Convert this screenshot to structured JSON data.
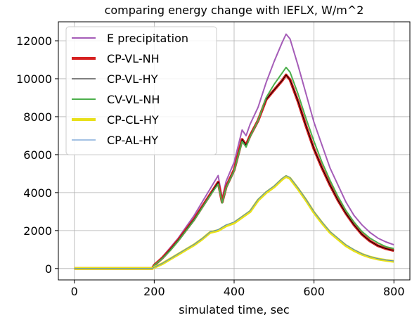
{
  "chart_data": {
    "type": "line",
    "title": "comparing energy change with IEFLX, W/m^2",
    "xlabel": "simulated time, sec",
    "ylabel": "",
    "xlim": [
      -40,
      840
    ],
    "ylim": [
      -600,
      13000
    ],
    "xticks": [
      0,
      200,
      400,
      600,
      800
    ],
    "yticks": [
      0,
      2000,
      4000,
      6000,
      8000,
      10000,
      12000
    ],
    "grid": true,
    "legend_position": "top-left",
    "series": [
      {
        "name": "E precipitation",
        "color": "#a55db8",
        "width": 2,
        "x": [
          0,
          195,
          200,
          220,
          240,
          260,
          280,
          300,
          320,
          340,
          360,
          370,
          380,
          400,
          420,
          430,
          440,
          460,
          480,
          500,
          520,
          530,
          540,
          560,
          580,
          600,
          620,
          640,
          660,
          680,
          700,
          720,
          740,
          760,
          780,
          800
        ],
        "y": [
          0,
          0,
          200,
          600,
          1100,
          1600,
          2200,
          2800,
          3500,
          4200,
          4900,
          3700,
          4600,
          5600,
          7300,
          7000,
          7600,
          8500,
          9800,
          10900,
          11900,
          12350,
          12100,
          10700,
          9200,
          7700,
          6500,
          5300,
          4400,
          3500,
          2800,
          2300,
          1900,
          1600,
          1400,
          1250
        ]
      },
      {
        "name": "CP-VL-NH",
        "color": "#d62020",
        "width": 4,
        "x": [
          0,
          195,
          200,
          220,
          240,
          260,
          280,
          300,
          320,
          340,
          360,
          370,
          380,
          400,
          420,
          430,
          440,
          460,
          480,
          500,
          520,
          530,
          540,
          560,
          580,
          600,
          620,
          640,
          660,
          680,
          700,
          720,
          740,
          760,
          780,
          800
        ],
        "y": [
          0,
          0,
          180,
          550,
          1000,
          1500,
          2050,
          2600,
          3250,
          3900,
          4550,
          3500,
          4300,
          5200,
          6800,
          6500,
          7000,
          7800,
          8900,
          9400,
          9900,
          10200,
          9950,
          8800,
          7500,
          6300,
          5300,
          4400,
          3600,
          2900,
          2300,
          1800,
          1450,
          1200,
          1050,
          950
        ]
      },
      {
        "name": "CP-VL-HY",
        "color": "#000000",
        "width": 1,
        "x": [
          0,
          195,
          200,
          220,
          240,
          260,
          280,
          300,
          320,
          340,
          360,
          370,
          380,
          400,
          420,
          430,
          440,
          460,
          480,
          500,
          520,
          530,
          540,
          560,
          580,
          600,
          620,
          640,
          660,
          680,
          700,
          720,
          740,
          760,
          780,
          800
        ],
        "y": [
          0,
          0,
          180,
          550,
          1000,
          1500,
          2050,
          2600,
          3250,
          3900,
          4550,
          3500,
          4300,
          5200,
          6800,
          6500,
          7000,
          7800,
          8900,
          9400,
          9900,
          10200,
          9950,
          8800,
          7500,
          6300,
          5300,
          4400,
          3600,
          2900,
          2300,
          1800,
          1450,
          1200,
          1050,
          950
        ]
      },
      {
        "name": "CV-VL-NH",
        "color": "#4caf4c",
        "width": 2,
        "x": [
          0,
          195,
          200,
          220,
          240,
          260,
          280,
          300,
          320,
          340,
          360,
          370,
          380,
          400,
          420,
          430,
          440,
          460,
          480,
          500,
          520,
          530,
          540,
          560,
          580,
          600,
          620,
          640,
          660,
          680,
          700,
          720,
          740,
          760,
          780,
          800
        ],
        "y": [
          0,
          0,
          170,
          520,
          950,
          1450,
          2000,
          2550,
          3200,
          3850,
          4450,
          3450,
          4250,
          5150,
          6700,
          6400,
          6950,
          7800,
          9000,
          9700,
          10300,
          10600,
          10350,
          9200,
          7900,
          6700,
          5600,
          4650,
          3800,
          3050,
          2450,
          1950,
          1600,
          1350,
          1150,
          1050
        ]
      },
      {
        "name": "CP-CL-HY",
        "color": "#e8e01a",
        "width": 4,
        "x": [
          0,
          195,
          200,
          220,
          240,
          260,
          280,
          300,
          320,
          340,
          360,
          380,
          400,
          420,
          440,
          460,
          480,
          500,
          520,
          530,
          540,
          560,
          580,
          600,
          620,
          640,
          660,
          680,
          700,
          720,
          740,
          760,
          780,
          800
        ],
        "y": [
          0,
          0,
          60,
          250,
          500,
          750,
          1000,
          1250,
          1550,
          1900,
          2000,
          2250,
          2400,
          2700,
          3000,
          3600,
          4000,
          4300,
          4700,
          4850,
          4750,
          4200,
          3600,
          2950,
          2400,
          1900,
          1550,
          1200,
          950,
          750,
          600,
          500,
          430,
          380
        ]
      },
      {
        "name": "CP-AL-HY",
        "color": "#4a86c8",
        "width": 1,
        "x": [
          0,
          195,
          200,
          220,
          240,
          260,
          280,
          300,
          320,
          340,
          360,
          380,
          400,
          420,
          440,
          460,
          480,
          500,
          520,
          530,
          540,
          560,
          580,
          600,
          620,
          640,
          660,
          680,
          700,
          720,
          740,
          760,
          780,
          800
        ],
        "y": [
          0,
          0,
          70,
          270,
          520,
          780,
          1030,
          1280,
          1580,
          1930,
          2050,
          2300,
          2450,
          2750,
          3050,
          3650,
          4050,
          4350,
          4750,
          4900,
          4800,
          4250,
          3650,
          3000,
          2450,
          1950,
          1600,
          1250,
          1000,
          780,
          630,
          520,
          450,
          400
        ]
      }
    ]
  }
}
